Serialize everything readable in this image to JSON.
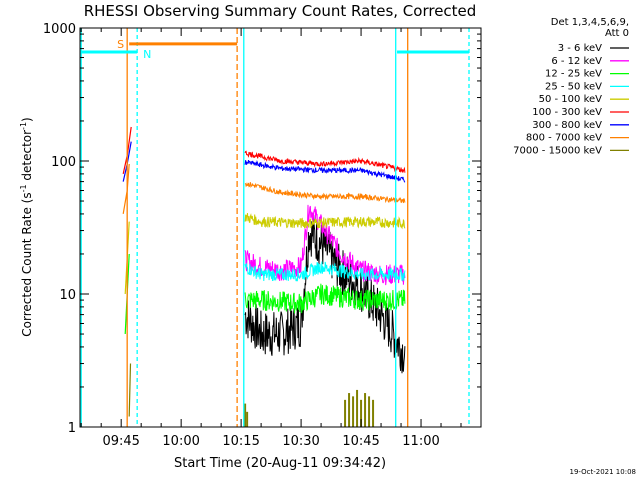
{
  "chart_data": {
    "type": "line",
    "title": "RHESSI Observing Summary Count Rates, Corrected",
    "xlabel": "Start Time (20-Aug-11 09:34:42)",
    "ylabel_main": "Corrected Count Rate (s",
    "ylabel_sup1": "-1",
    "ylabel_mid": " detector",
    "ylabel_sup2": "-1",
    "ylabel_end": ")",
    "y_scale": "log",
    "ylim": [
      1,
      1000
    ],
    "xlim": [
      "09:34:42",
      "11:15:00"
    ],
    "x_ticks": [
      "09:45",
      "10:00",
      "10:15",
      "10:30",
      "10:45",
      "11:00"
    ],
    "y_ticks": [
      "1",
      "10",
      "100",
      "1000"
    ],
    "legend_header": [
      "Det 1,3,4,5,6,9,",
      "Att 0"
    ],
    "legend_position": "right",
    "series": [
      {
        "name": "3 - 6 keV",
        "color": "#000000"
      },
      {
        "name": "6 - 12 keV",
        "color": "#ff00ff"
      },
      {
        "name": "12 - 25 keV",
        "color": "#00ff00"
      },
      {
        "name": "25 - 50 keV",
        "color": "#00ffff"
      },
      {
        "name": "50 - 100 keV",
        "color": "#cccc00"
      },
      {
        "name": "100 - 300 keV",
        "color": "#ff0000"
      },
      {
        "name": "300 - 800 keV",
        "color": "#0000ff"
      },
      {
        "name": "800 - 7000 keV",
        "color": "#ff8000"
      },
      {
        "name": "7000 - 15000 keV",
        "color": "#808000"
      }
    ],
    "levels_after_1015": {
      "3 - 6 keV": {
        "x": [
          "10:16",
          "10:20",
          "10:25",
          "10:30",
          "10:32",
          "10:36",
          "10:40",
          "10:45",
          "10:50",
          "10:53",
          "10:56"
        ],
        "y": [
          7,
          5,
          5,
          6,
          30,
          22,
          15,
          11,
          7,
          5,
          3.5
        ]
      },
      "6 - 12 keV": {
        "x": [
          "10:16",
          "10:20",
          "10:25",
          "10:30",
          "10:32",
          "10:36",
          "10:40",
          "10:45",
          "10:50",
          "10:56"
        ],
        "y": [
          18,
          16,
          15,
          16,
          45,
          30,
          20,
          15,
          14,
          14
        ]
      },
      "12 - 25 keV": {
        "x": [
          "10:16",
          "10:20",
          "10:30",
          "10:35",
          "10:45",
          "10:56"
        ],
        "y": [
          9,
          9,
          8.5,
          10,
          9,
          9
        ]
      },
      "25 - 50 keV": {
        "x": [
          "10:16",
          "10:20",
          "10:30",
          "10:35",
          "10:45",
          "10:56"
        ],
        "y": [
          16,
          14,
          14,
          16,
          14,
          14
        ]
      },
      "50 - 100 keV": {
        "x": [
          "10:16",
          "10:20",
          "10:30",
          "10:45",
          "10:56"
        ],
        "y": [
          38,
          35,
          34,
          35,
          34
        ]
      },
      "100 - 300 keV": {
        "x": [
          "10:16",
          "10:25",
          "10:35",
          "10:45",
          "10:56"
        ],
        "y": [
          115,
          100,
          95,
          100,
          85
        ]
      },
      "300 - 800 keV": {
        "x": [
          "10:16",
          "10:25",
          "10:35",
          "10:45",
          "10:56"
        ],
        "y": [
          98,
          88,
          85,
          85,
          72
        ]
      },
      "800 - 7000 keV": {
        "x": [
          "10:16",
          "10:25",
          "10:35",
          "10:45",
          "10:56"
        ],
        "y": [
          68,
          58,
          54,
          54,
          50
        ]
      }
    },
    "flags": [
      {
        "label": "S",
        "color": "#ff8000",
        "from": "09:47",
        "to": "10:14",
        "level": 760
      },
      {
        "label": "N",
        "color": "#00ffff",
        "from": "09:35",
        "to": "09:49",
        "level": 660
      },
      {
        "label": "",
        "color": "#00ffff",
        "from": "10:54",
        "to": "11:12",
        "level": 660
      }
    ],
    "timestamp": "19-Oct-2021 10:08"
  }
}
